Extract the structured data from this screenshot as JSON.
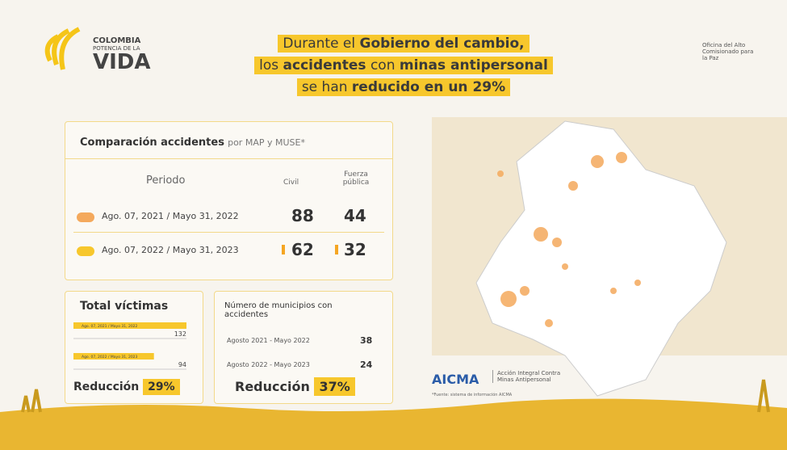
{
  "logo": {
    "line1": "COLOMBIA",
    "line2": "POTENCIA DE LA",
    "line3": "VIDA"
  },
  "headline": {
    "lines": [
      [
        {
          "text": "Durante el ",
          "bold": false
        },
        {
          "text": "Gobierno del cambio,",
          "bold": true
        }
      ],
      [
        {
          "text": "los ",
          "bold": false
        },
        {
          "text": "accidentes",
          "bold": true
        },
        {
          "text": " con ",
          "bold": false
        },
        {
          "text": "minas antipersonal",
          "bold": true
        }
      ],
      [
        {
          "text": "se han ",
          "bold": false
        },
        {
          "text": "reducido en un 29%",
          "bold": true
        }
      ]
    ]
  },
  "office": "Oficina del Alto Comisionado para la Paz",
  "comparison": {
    "title": "Comparación accidentes",
    "subtitle": "por MAP y MUSE*",
    "headers": [
      "Periodo",
      "Civil",
      "Fuerza pública"
    ],
    "rows": [
      [
        "Ago. 07, 2021 / Mayo 31, 2022",
        88,
        44
      ],
      [
        "Ago. 07, 2022 / Mayo 31, 2023",
        62,
        32
      ]
    ]
  },
  "victims": {
    "title": "Total víctimas",
    "rows": [
      {
        "label": "Ago. 07, 2021 / Mayo 31, 2022",
        "value": 132
      },
      {
        "label": "Ago. 07, 2022 / Mayo 31, 2023",
        "value": 94
      }
    ],
    "reduction_label": "Reducción",
    "reduction": "29%"
  },
  "municipalities": {
    "title": "Número de municipios con accidentes",
    "rows": [
      [
        "Agosto 2021 - Mayo 2022",
        38
      ],
      [
        "Agosto 2022 - Mayo 2023",
        24
      ]
    ],
    "reduction_label": "Reducción",
    "reduction": "37%"
  },
  "aicma": {
    "name": "AICMA",
    "description": "Acción Integral Contra Minas Antipersonal",
    "source": "*Fuente: sistema de información AICMA"
  }
}
